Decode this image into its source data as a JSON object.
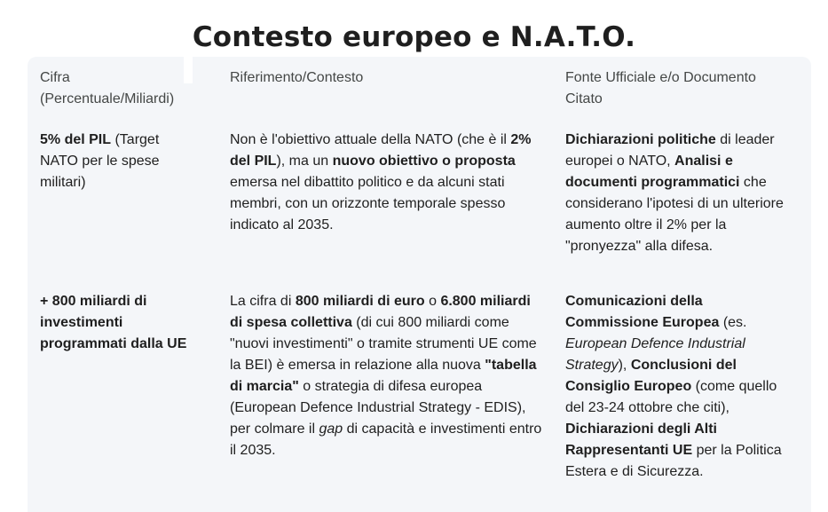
{
  "title": "Contesto europeo e N.A.T.O.",
  "table": {
    "headers": {
      "col1_line1": "Cifra",
      "col1_line2": "(Percentuale/Miliardi)",
      "col2": "Riferimento/Contesto",
      "col3_line1": "Fonte Ufficiale e/o Documento",
      "col3_line2": "Citato"
    },
    "row1": {
      "c1_b1": "5% del PIL",
      "c1_t1": " (Target NATO per le spese militari)",
      "c2_t1": "Non è l'obiettivo attuale della NATO (che è il ",
      "c2_b1": "2% del PIL",
      "c2_t2": "), ma un ",
      "c2_b2": "nuovo obiettivo o proposta",
      "c2_t3": " emersa nel dibattito politico e da alcuni stati membri, con un orizzonte temporale spesso indicato al 2035.",
      "c3_b1": "Dichiarazioni politiche",
      "c3_t1": " di leader europei o NATO, ",
      "c3_b2": "Analisi e documenti programmatici",
      "c3_t2": " che considerano l'ipotesi di un ulteriore aumento oltre il 2% per la \"pronyezza\" alla difesa."
    },
    "row2": {
      "c1_b1": "+ 800 miliardi di investimenti programmati dalla UE",
      "c2_t1": "La cifra di ",
      "c2_b1": "800 miliardi di euro",
      "c2_t2": " o ",
      "c2_b2": "6.800 miliardi di spesa collettiva",
      "c2_t3": " (di cui 800 miliardi come \"nuovi investimenti\" o tramite strumenti UE come la BEI) è emersa in relazione alla nuova ",
      "c2_b3": "\"tabella di marcia\"",
      "c2_t4": " o strategia di difesa europea (European Defence Industrial Strategy - EDIS), per colmare il ",
      "c2_i1": "gap",
      "c2_t5": " di capacità e investimenti entro il 2035.",
      "c3_b1": "Comunicazioni della Commissione Europea",
      "c3_t1": " (es. ",
      "c3_i1": "European Defence Industrial Strategy",
      "c3_t2": "), ",
      "c3_b2": "Conclusioni del Consiglio Europeo",
      "c3_t3": " (come quello del 23-24 ottobre che citi), ",
      "c3_b3": "Dichiarazioni degli Alti Rappresentanti UE",
      "c3_t4": " per la Politica Estera e di Sicurezza."
    }
  }
}
